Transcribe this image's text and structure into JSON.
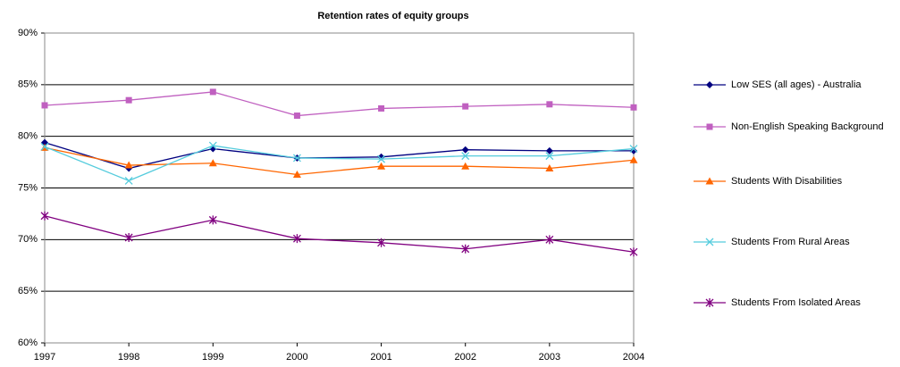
{
  "chart_data": {
    "type": "line",
    "title": "Retention rates of equity groups",
    "categories": [
      "1997",
      "1998",
      "1999",
      "2000",
      "2001",
      "2002",
      "2003",
      "2004"
    ],
    "series": [
      {
        "name": "Low  SES (all ages) - Australia",
        "color": "#000080",
        "marker": "diamond",
        "values": [
          79.4,
          76.9,
          78.8,
          77.9,
          78.0,
          78.7,
          78.6,
          78.6
        ]
      },
      {
        "name": "Non-English Speaking Background",
        "color": "#C060C0",
        "marker": "square",
        "values": [
          83.0,
          83.5,
          84.3,
          82.0,
          82.7,
          82.9,
          83.1,
          82.8
        ]
      },
      {
        "name": "Students With Disabilities",
        "color": "#FF6600",
        "marker": "triangle",
        "values": [
          78.9,
          77.2,
          77.4,
          76.3,
          77.1,
          77.1,
          76.9,
          77.7
        ]
      },
      {
        "name": "Students From Rural Areas",
        "color": "#55CCDD",
        "marker": "x",
        "values": [
          79.0,
          75.7,
          79.1,
          77.9,
          77.8,
          78.1,
          78.1,
          78.8
        ]
      },
      {
        "name": "Students From Isolated Areas",
        "color": "#800080",
        "marker": "asterisk",
        "values": [
          72.3,
          70.2,
          71.9,
          70.1,
          69.7,
          69.1,
          70.0,
          68.8
        ]
      }
    ],
    "ylim": [
      60,
      90
    ],
    "yticks": [
      {
        "value": 60,
        "label": "60%"
      },
      {
        "value": 65,
        "label": "65%"
      },
      {
        "value": 70,
        "label": "70%"
      },
      {
        "value": 75,
        "label": "75%"
      },
      {
        "value": 80,
        "label": "80%"
      },
      {
        "value": 85,
        "label": "85%"
      },
      {
        "value": 90,
        "label": "90%"
      }
    ],
    "grid": true,
    "legend": "right"
  }
}
